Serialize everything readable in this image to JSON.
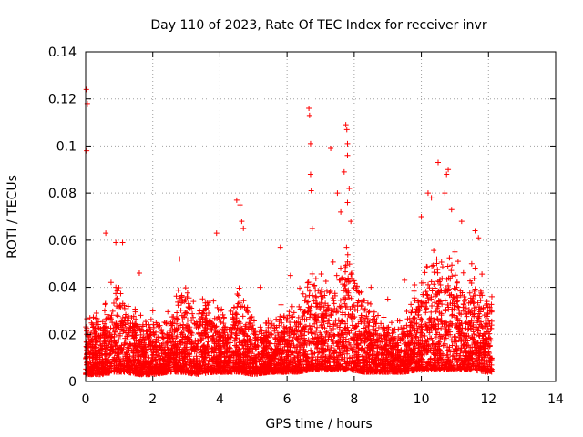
{
  "chart_data": {
    "type": "scatter",
    "title": "Day 110 of 2023, Rate Of TEC Index for receiver invr",
    "xlabel": "GPS time / hours",
    "ylabel": "ROTI / TECUs",
    "xlim": [
      0,
      14
    ],
    "ylim": [
      0,
      0.14
    ],
    "xticks": [
      0,
      2,
      4,
      6,
      8,
      10,
      12,
      14
    ],
    "yticks": [
      0,
      0.02,
      0.04,
      0.06,
      0.08,
      0.1,
      0.12,
      0.14
    ],
    "xtick_labels": [
      "0",
      "2",
      "4",
      "6",
      "8",
      "10",
      "12",
      "14"
    ],
    "ytick_labels": [
      "0",
      "0.02",
      "0.04",
      "0.06",
      "0.08",
      "0.1",
      "0.12",
      "0.14"
    ],
    "grid": true,
    "marker": "plus",
    "color": "#ff0000",
    "series": [
      {
        "name": "ROTI",
        "points": [
          [
            0.02,
            0.124
          ],
          [
            0.05,
            0.118
          ],
          [
            0.03,
            0.098
          ],
          [
            0.6,
            0.063
          ],
          [
            0.9,
            0.059
          ],
          [
            1.1,
            0.059
          ],
          [
            1.6,
            0.046
          ],
          [
            2.8,
            0.052
          ],
          [
            3.9,
            0.063
          ],
          [
            4.5,
            0.077
          ],
          [
            4.6,
            0.075
          ],
          [
            4.65,
            0.068
          ],
          [
            4.7,
            0.065
          ],
          [
            5.8,
            0.057
          ],
          [
            6.65,
            0.116
          ],
          [
            6.67,
            0.113
          ],
          [
            6.7,
            0.101
          ],
          [
            6.7,
            0.088
          ],
          [
            6.72,
            0.081
          ],
          [
            6.75,
            0.065
          ],
          [
            7.3,
            0.099
          ],
          [
            7.5,
            0.08
          ],
          [
            7.75,
            0.109
          ],
          [
            7.78,
            0.107
          ],
          [
            7.8,
            0.101
          ],
          [
            7.8,
            0.096
          ],
          [
            7.7,
            0.089
          ],
          [
            7.85,
            0.082
          ],
          [
            7.8,
            0.076
          ],
          [
            7.6,
            0.072
          ],
          [
            7.9,
            0.068
          ],
          [
            10.5,
            0.093
          ],
          [
            10.8,
            0.09
          ],
          [
            10.75,
            0.088
          ],
          [
            10.2,
            0.08
          ],
          [
            10.3,
            0.078
          ],
          [
            10.7,
            0.08
          ],
          [
            10.0,
            0.07
          ],
          [
            10.9,
            0.073
          ],
          [
            11.2,
            0.068
          ],
          [
            11.6,
            0.064
          ],
          [
            11.7,
            0.061
          ],
          [
            9.5,
            0.043
          ],
          [
            9.8,
            0.041
          ],
          [
            12.1,
            0.036
          ],
          [
            0.9,
            0.04
          ],
          [
            2.0,
            0.03
          ],
          [
            5.2,
            0.04
          ],
          [
            6.1,
            0.045
          ],
          [
            8.5,
            0.04
          ],
          [
            9.0,
            0.035
          ],
          [
            11.0,
            0.055
          ],
          [
            11.5,
            0.05
          ],
          [
            12.05,
            0.03
          ]
        ],
        "density_envelope": {
          "x": [
            0,
            0.5,
            0.8,
            1.2,
            1.6,
            2.0,
            2.5,
            2.9,
            3.3,
            3.8,
            4.2,
            4.6,
            5.0,
            5.5,
            5.9,
            6.3,
            6.7,
            7.1,
            7.5,
            7.9,
            8.3,
            8.7,
            9.1,
            9.5,
            9.9,
            10.3,
            10.7,
            11.1,
            11.5,
            11.9,
            12.1
          ],
          "upper": [
            0.03,
            0.035,
            0.045,
            0.04,
            0.03,
            0.028,
            0.032,
            0.045,
            0.035,
            0.04,
            0.03,
            0.045,
            0.03,
            0.028,
            0.035,
            0.04,
            0.05,
            0.05,
            0.055,
            0.06,
            0.04,
            0.032,
            0.028,
            0.03,
            0.045,
            0.06,
            0.06,
            0.055,
            0.05,
            0.045,
            0.035
          ],
          "lower": [
            0.003,
            0.003,
            0.004,
            0.004,
            0.003,
            0.003,
            0.004,
            0.004,
            0.003,
            0.004,
            0.004,
            0.004,
            0.003,
            0.004,
            0.004,
            0.004,
            0.005,
            0.005,
            0.005,
            0.005,
            0.004,
            0.004,
            0.004,
            0.004,
            0.005,
            0.005,
            0.005,
            0.005,
            0.005,
            0.004,
            0.004
          ]
        }
      }
    ]
  }
}
